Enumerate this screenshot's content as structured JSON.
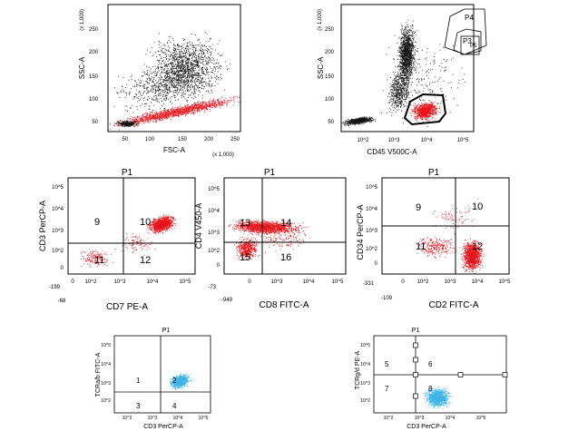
{
  "colors": {
    "black": "#111111",
    "red": "#e8141a",
    "cyan": "#3fb4e6",
    "grid": "#000000"
  },
  "chart_data": [
    {
      "type": "scatter",
      "title": "",
      "xlabel": "FSC-A",
      "x_multiplier": "(x 1,000)",
      "ylabel": "SSC-A",
      "y_multiplier": "(x 1,000)",
      "xlim": [
        0,
        262
      ],
      "ylim": [
        0,
        262
      ],
      "xticks": [
        "50",
        "100",
        "150",
        "200",
        "250"
      ],
      "yticks": [
        "50",
        "100",
        "150",
        "200",
        "250"
      ],
      "gates": [],
      "quadrant_labels": [],
      "populations": [
        {
          "color": "#111111",
          "x_range": [
            90,
            262
          ],
          "y_range": [
            55,
            240
          ],
          "density": "medium-cloud"
        },
        {
          "color": "#e8141a",
          "x_range": [
            30,
            262
          ],
          "y_range": [
            20,
            80
          ],
          "density": "high-diagonal-band"
        }
      ]
    },
    {
      "type": "scatter",
      "title": "",
      "xlabel": "CD45 V500C-A",
      "ylabel": "SSC-A",
      "y_multiplier": "(x 1,000)",
      "xscale": "log",
      "xticks": [
        "10^2",
        "10^3",
        "10^4",
        "10^5"
      ],
      "yticks": [
        "50",
        "100",
        "150",
        "200",
        "250"
      ],
      "gates": [
        "P4",
        "P3",
        "P5"
      ],
      "quadrant_labels": [],
      "populations": [
        {
          "color": "#111111",
          "x_range": [
            "10^2.6",
            "10^3.7"
          ],
          "y_range": [
            80,
            245
          ],
          "density": "dense-vertical-cluster"
        },
        {
          "color": "#e8141a",
          "x_range": [
            "10^3.5",
            "10^4.3"
          ],
          "y_range": [
            10,
            60
          ],
          "density": "gated-blob"
        }
      ]
    },
    {
      "type": "scatter",
      "title": "P1",
      "xlabel": "CD7 PE-A",
      "ylabel": "CD3 PerCP-A",
      "xscale": "log",
      "yscale": "log",
      "xticks": [
        "-68",
        "0",
        "10^2",
        "10^3",
        "10^4",
        "10^5"
      ],
      "yticks": [
        "-199",
        "0",
        "10^2",
        "10^3",
        "10^4",
        "10^5"
      ],
      "quadrant_labels": [
        "9",
        "10",
        "11",
        "12"
      ],
      "populations": [
        {
          "color": "#e8141a",
          "quadrant": "10",
          "density": "main-cluster"
        },
        {
          "color": "#e8141a",
          "quadrant": "11",
          "density": "sparse"
        }
      ]
    },
    {
      "type": "scatter",
      "title": "P1",
      "xlabel": "CD8 FITC-A",
      "ylabel": "CD4 V450-A",
      "xscale": "log",
      "yscale": "log",
      "xticks": [
        "-949",
        "0",
        "10^3",
        "10^4",
        "10^5"
      ],
      "yticks": [
        "-73",
        "0",
        "10^2",
        "10^3",
        "10^4",
        "10^5"
      ],
      "quadrant_labels": [
        "13",
        "14",
        "15",
        "16"
      ],
      "populations": [
        {
          "color": "#e8141a",
          "quadrant": "13/14",
          "density": "horizontal-band"
        },
        {
          "color": "#e8141a",
          "quadrant": "15",
          "density": "dense-cluster"
        }
      ]
    },
    {
      "type": "scatter",
      "title": "P1",
      "xlabel": "CD2 FITC-A",
      "ylabel": "CD34 PerCP-A",
      "xscale": "log",
      "yscale": "log",
      "xticks": [
        "-109",
        "0",
        "10^2",
        "10^3",
        "10^4",
        "10^5"
      ],
      "yticks": [
        "-331",
        "0",
        "10^2",
        "10^3",
        "10^4",
        "10^5"
      ],
      "quadrant_labels": [
        "9",
        "10",
        "11",
        "12"
      ],
      "populations": [
        {
          "color": "#e8141a",
          "quadrant": "12",
          "density": "main-cluster"
        },
        {
          "color": "#e8141a",
          "quadrant": "11",
          "density": "sparse"
        }
      ]
    },
    {
      "type": "scatter",
      "title": "P1",
      "xlabel": "CD3 PerCP-A",
      "ylabel": "TCRa/b FITC-A",
      "xscale": "log",
      "yscale": "log",
      "xticks": [
        "10^2",
        "10^3",
        "10^4",
        "10^5"
      ],
      "yticks": [
        "10^2",
        "10^3",
        "10^4",
        "10^5"
      ],
      "quadrant_labels": [
        "1",
        "2",
        "3",
        "4"
      ],
      "populations": [
        {
          "color": "#3fb4e6",
          "quadrant": "2/4",
          "density": "main-cluster"
        }
      ]
    },
    {
      "type": "scatter",
      "title": "P1",
      "xlabel": "CD3 PerCP-A",
      "ylabel": "TCRg/d PE-A",
      "xscale": "log",
      "yscale": "log",
      "xticks": [
        "10^2",
        "10^3",
        "10^4",
        "10^5"
      ],
      "yticks": [
        "10^2",
        "10^3",
        "10^4",
        "10^5"
      ],
      "quadrant_labels": [
        "5",
        "6",
        "7",
        "8"
      ],
      "populations": [
        {
          "color": "#3fb4e6",
          "quadrant": "8",
          "density": "main-cluster"
        }
      ]
    }
  ]
}
